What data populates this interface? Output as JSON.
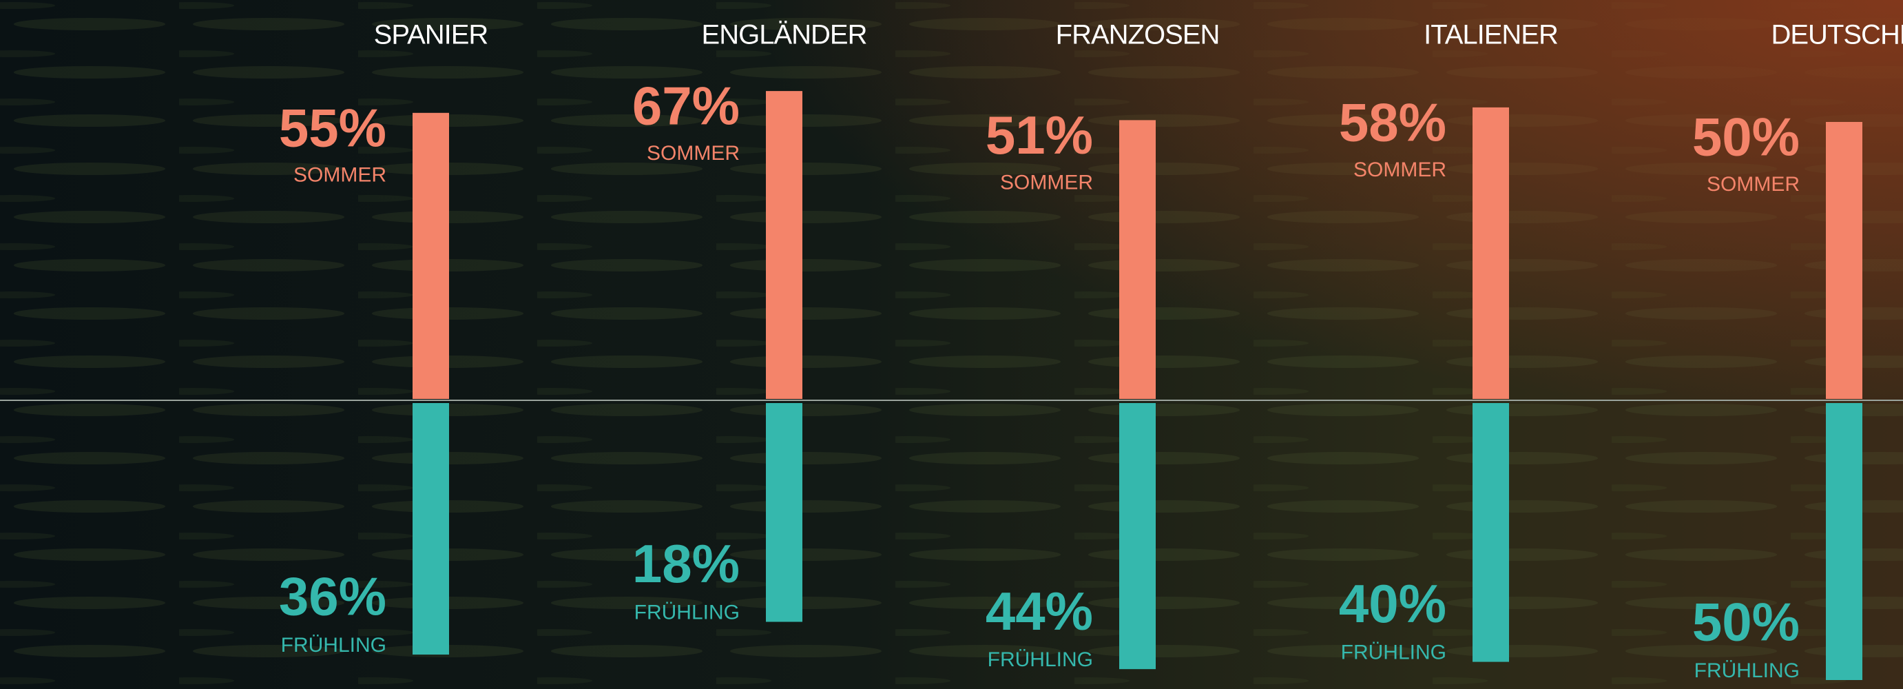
{
  "chart_data": {
    "type": "bar",
    "categories": [
      "SPANIER",
      "ENGLÄNDER",
      "FRANZOSEN",
      "ITALIENER",
      "DEUTSCHE"
    ],
    "series": [
      {
        "name": "SOMMER",
        "color": "#f4846a",
        "values": [
          55,
          67,
          51,
          58,
          50
        ],
        "value_labels": [
          "55%",
          "67%",
          "51%",
          "58%",
          "50%"
        ]
      },
      {
        "name": "FRÜHLING",
        "color": "#35b8ad",
        "values": [
          36,
          18,
          44,
          40,
          50
        ],
        "value_labels": [
          "36%",
          "18%",
          "44%",
          "40%",
          "50%"
        ]
      }
    ]
  }
}
